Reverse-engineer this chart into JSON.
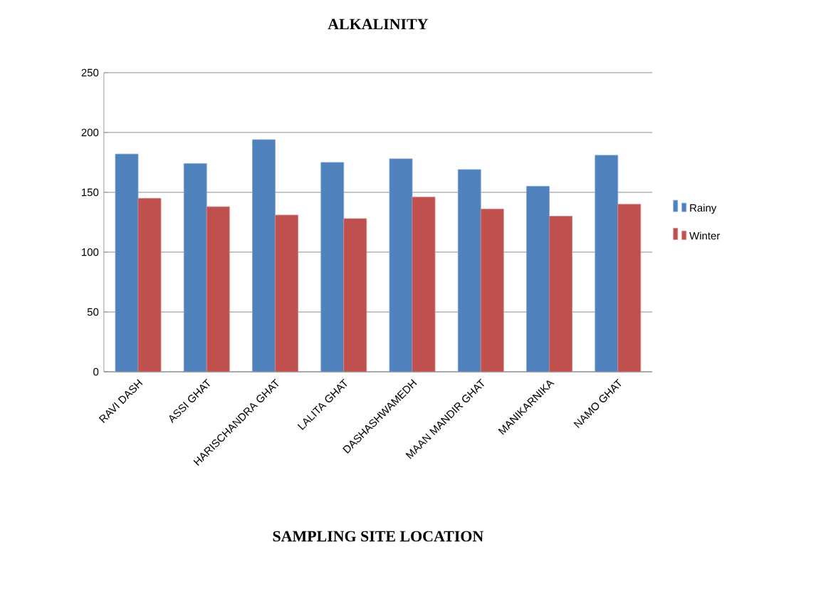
{
  "chart_data": {
    "type": "bar",
    "title": "ALKALINITY",
    "xlabel": "SAMPLING SITE LOCATION",
    "categories": [
      "RAVI DASH",
      "ASSI GHAT",
      "HARISCHANDRA GHAT",
      "LALITA GHAT",
      "DASHASHWAMEDH",
      "MAAN MANDIR GHAT",
      "MANIKARNIKA",
      "NAMO GHAT"
    ],
    "series": [
      {
        "name": "Rainy",
        "color": "#4f81bd",
        "values": [
          182,
          174,
          194,
          175,
          178,
          169,
          155,
          181
        ]
      },
      {
        "name": "Winter",
        "color": "#c0504d",
        "values": [
          145,
          138,
          131,
          128,
          146,
          136,
          130,
          140
        ]
      }
    ],
    "ylim": [
      0,
      250
    ],
    "yticks": [
      0,
      50,
      100,
      150,
      200,
      250
    ],
    "grid": "y",
    "legend": "right"
  }
}
